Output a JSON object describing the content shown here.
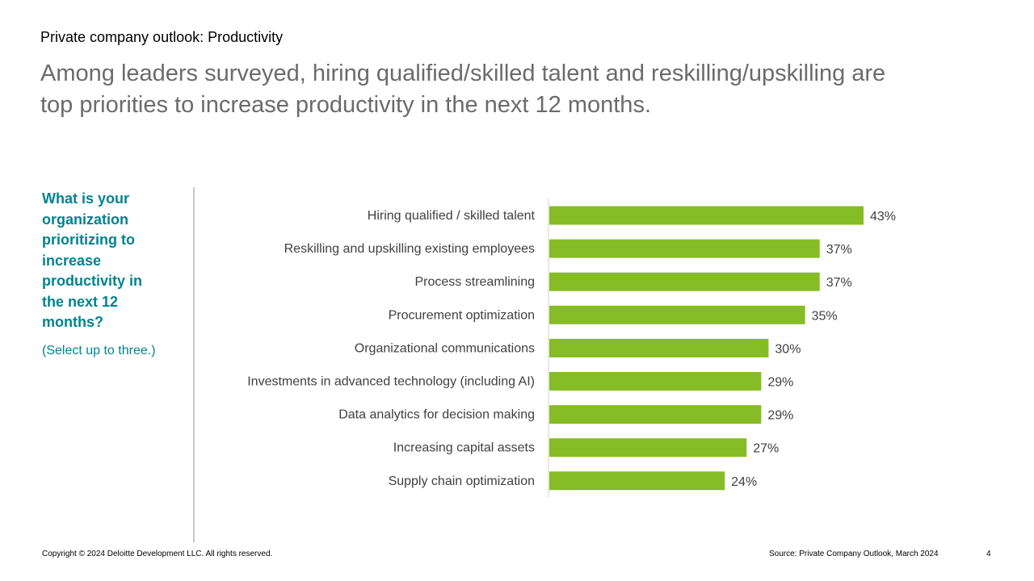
{
  "header": {
    "eyebrow": "Private company outlook: Productivity",
    "headline": "Among leaders surveyed, hiring qualified/skilled talent and reskilling/upskilling are top priorities to increase productivity in the next 12 months."
  },
  "sidebar": {
    "question": "What is your organization prioritizing to increase productivity in the next 12 months?",
    "note": "(Select up to three.)"
  },
  "chart_data": {
    "type": "bar",
    "orientation": "horizontal",
    "categories": [
      "Hiring qualified / skilled talent",
      "Reskilling and upskilling existing employees",
      "Process streamlining",
      "Procurement optimization",
      "Organizational communications",
      "Investments in advanced technology (including AI)",
      "Data analytics for decision making",
      "Increasing capital assets",
      "Supply chain optimization"
    ],
    "values": [
      43,
      37,
      37,
      35,
      30,
      29,
      29,
      27,
      24
    ],
    "data_labels": [
      "43%",
      "37%",
      "37%",
      "35%",
      "30%",
      "29%",
      "29%",
      "27%",
      "24%"
    ],
    "bar_color": "#86bc25",
    "grid": false
  },
  "footer": {
    "copyright": "Copyright © 2024 Deloitte Development LLC. All rights reserved.",
    "source": "Source: Private Company Outlook, March 2024",
    "page": "4"
  }
}
